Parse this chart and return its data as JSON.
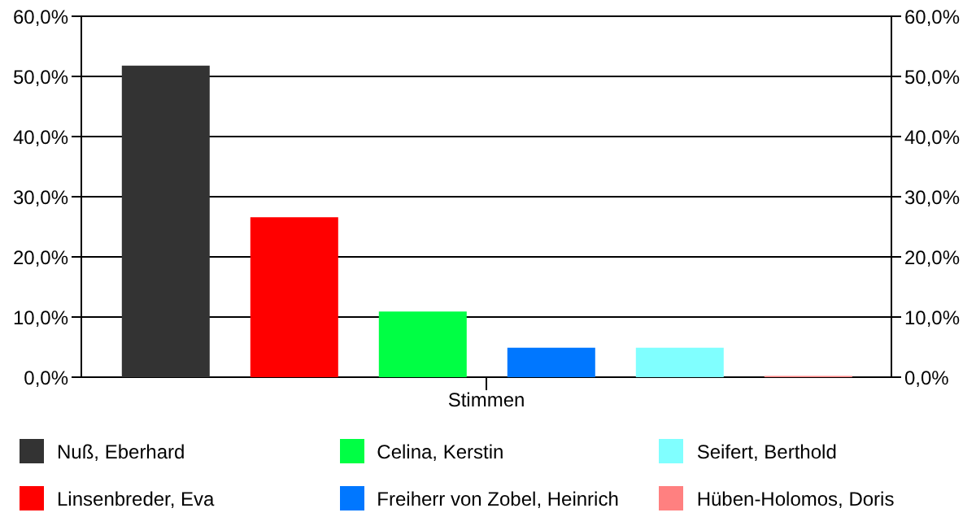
{
  "chart_data": {
    "type": "bar",
    "xlabel": "Stimmen",
    "categories": [
      null
    ],
    "series": [
      {
        "name": "Nuß, Eberhard",
        "color": "#333333",
        "values": [
          51.8
        ]
      },
      {
        "name": "Linsenbreder, Eva",
        "color": "#ff0000",
        "values": [
          26.6
        ]
      },
      {
        "name": "Celina, Kerstin",
        "color": "#00ff44",
        "values": [
          10.9
        ]
      },
      {
        "name": "Freiherr von Zobel, Heinrich",
        "color": "#0077ff",
        "values": [
          4.9
        ]
      },
      {
        "name": "Seifert, Berthold",
        "color": "#80ffff",
        "values": [
          4.9
        ]
      },
      {
        "name": "Hüben-Holomos, Doris",
        "color": "#ff8080",
        "values": [
          0.2
        ]
      }
    ],
    "ylim": [
      0,
      60
    ],
    "yticks": [
      {
        "value": 0,
        "label": "0,0%"
      },
      {
        "value": 10,
        "label": "10,0%"
      },
      {
        "value": 20,
        "label": "20,0%"
      },
      {
        "value": 30,
        "label": "30,0%"
      },
      {
        "value": 40,
        "label": "40,0%"
      },
      {
        "value": 50,
        "label": "50,0%"
      },
      {
        "value": 60,
        "label": "60,0%"
      }
    ],
    "y2lim": [
      0,
      60
    ],
    "y2ticks": [
      {
        "value": 0,
        "label": "0,0%"
      },
      {
        "value": 10,
        "label": "10,0%"
      },
      {
        "value": 20,
        "label": "20,0%"
      },
      {
        "value": 30,
        "label": "30,0%"
      },
      {
        "value": 40,
        "label": "40,0%"
      },
      {
        "value": 50,
        "label": "50,0%"
      },
      {
        "value": 60,
        "label": "60,0%"
      }
    ],
    "grid": "y",
    "legend": "bottom"
  }
}
